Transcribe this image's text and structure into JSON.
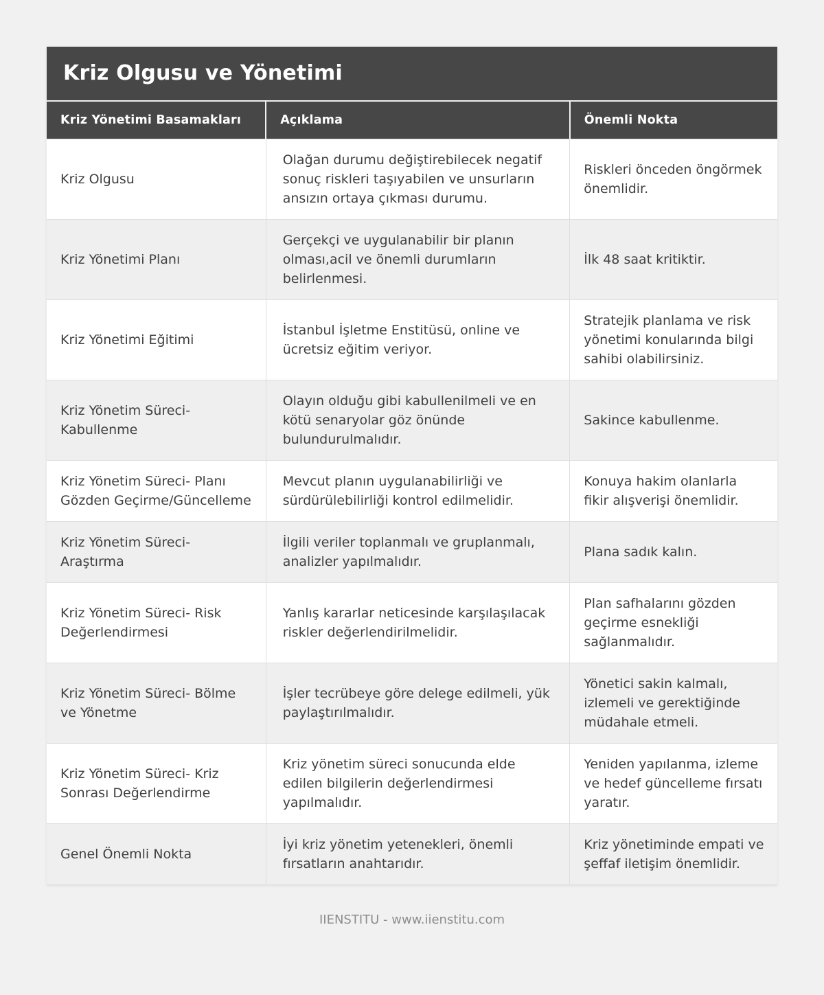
{
  "header": {
    "title": "Kriz Olgusu ve Yönetimi"
  },
  "table": {
    "columns": [
      "Kriz Yönetimi Basamakları",
      "Açıklama",
      "Önemli Nokta"
    ],
    "rows": [
      {
        "step": "Kriz Olgusu",
        "description": "Olağan durumu değiştirebilecek negatif sonuç riskleri taşıyabilen ve unsurların ansızın ortaya çıkması durumu.",
        "point": "Riskleri önceden öngörmek önemlidir."
      },
      {
        "step": "Kriz Yönetimi Planı",
        "description": "Gerçekçi ve uygulanabilir bir planın olması,acil ve önemli durumların belirlenmesi.",
        "point": "İlk 48 saat kritiktir."
      },
      {
        "step": "Kriz Yönetimi Eğitimi",
        "description": "İstanbul İşletme Enstitüsü, online ve ücretsiz eğitim veriyor.",
        "point": "Stratejik planlama ve risk yönetimi konularında bilgi sahibi olabilirsiniz."
      },
      {
        "step": "Kriz Yönetim Süreci- Kabullenme",
        "description": "Olayın olduğu gibi kabullenilmeli ve en kötü senaryolar göz önünde bulundurulmalıdır.",
        "point": "Sakince kabullenme."
      },
      {
        "step": "Kriz Yönetim Süreci- Planı Gözden Geçirme/Güncelleme",
        "description": "Mevcut planın uygulanabilirliği ve sürdürülebilirliği kontrol edilmelidir.",
        "point": "Konuya hakim olanlarla fikir alışverişi önemlidir."
      },
      {
        "step": "Kriz Yönetim Süreci- Araştırma",
        "description": "İlgili veriler toplanmalı ve gruplanmalı, analizler yapılmalıdır.",
        "point": "Plana sadık kalın."
      },
      {
        "step": "Kriz Yönetim Süreci- Risk Değerlendirmesi",
        "description": "Yanlış kararlar neticesinde karşılaşılacak riskler değerlendirilmelidir.",
        "point": "Plan safhalarını gözden geçirme esnekliği sağlanmalıdır."
      },
      {
        "step": "Kriz Yönetim Süreci- Bölme ve Yönetme",
        "description": "İşler tecrübeye göre delege edilmeli, yük paylaştırılmalıdır.",
        "point": "Yönetici sakin kalmalı, izlemeli ve gerektiğinde müdahale etmeli."
      },
      {
        "step": "Kriz Yönetim Süreci- Kriz Sonrası Değerlendirme",
        "description": "Kriz yönetim süreci sonucunda elde edilen bilgilerin değerlendirmesi yapılmalıdır.",
        "point": "Yeniden yapılanma, izleme ve hedef güncelleme fırsatı yaratır."
      },
      {
        "step": "Genel Önemli Nokta",
        "description": "İyi kriz yönetim yetenekleri, önemli fırsatların anahtarıdır.",
        "point": "Kriz yönetiminde empati ve şeffaf iletişim önemlidir."
      }
    ]
  },
  "footer": {
    "text": "IIENSTITU - www.iienstitu.com"
  },
  "colors": {
    "header_background": "#474747",
    "header_text": "#ffffff",
    "row_alternate": "#efefef",
    "row_default": "#ffffff",
    "body_text": "#3f3f3f",
    "page_background": "#f1f1f2",
    "cell_border": "#dedede",
    "footer_text": "#8d8d8d"
  }
}
